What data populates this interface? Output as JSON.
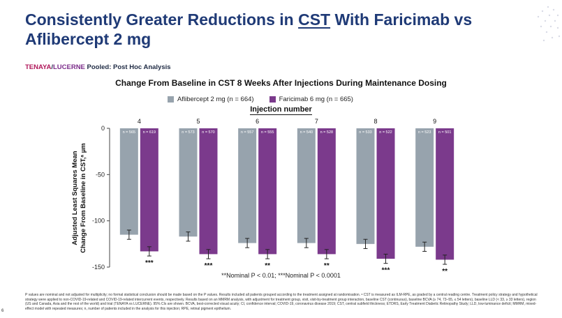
{
  "slide": {
    "title_before": "Consistently Greater Reductions in ",
    "title_underlined": "CST",
    "title_after": " With Faricimab vs Aflibercept 2 mg",
    "subtitle_tenaya": "TENAYA",
    "subtitle_slash": "/",
    "subtitle_lucerne": "LUCERNE",
    "subtitle_rest": " Pooled: Post Hoc Analysis",
    "page_number": "6",
    "significance_note": "**Nominal P < 0.01; ***Nominal P < 0.0001",
    "footnote": "P values are nominal and not adjusted for multiplicity; no formal statistical conclusion should be made based on the P values. Results included all patients grouped according to the treatment assigned at randomisation. ᵃ CST is measured as ILM-RPE, as graded by a central reading centre. Treatment policy strategy and hypothetical strategy were applied to non-COVID-19-related and COVID-19-related intercurrent events, respectively. Results based on an MMRM analysis, with adjustment for treatment group, visit, visit-by-treatment group interaction, baseline CST (continuous), baseline BCVA (≥ 74, 73–55, ≤ 54 letters), baseline LLD (< 33, ≥ 33 letters), region (US and Canada, Asia and the rest of the world) and trial (TENAYA vs LUCERNE). 95% CIs are shown. BCVA, best-corrected visual acuity; CI, confidence interval; COVID-19, coronavirus disease 2019; CST, central subfield thickness; ETDRS, Early Treatment Diabetic Retinopathy Study; LLD, low-luminance deficit; MMRM, mixed-effect model with repeated measures; n, number of patients included in the analysis for this injection; RPE, retinal pigment epithelium."
  },
  "chart_data": {
    "type": "bar",
    "title": "Change From Baseline in CST 8 Weeks After Injections During Maintenance Dosing",
    "xlabel": "Injection number",
    "ylabel_line1": "Adjusted Least Squares Mean",
    "ylabel_line2": "Change From Baseline in CST,ᵃ µm",
    "categories": [
      "4",
      "5",
      "6",
      "7",
      "8",
      "9"
    ],
    "ylim": [
      -150,
      0
    ],
    "yticks": [
      "0",
      "-50",
      "-100",
      "-150"
    ],
    "ytick_values": [
      0,
      -50,
      -100,
      -150
    ],
    "series": [
      {
        "name": "Aflibercept 2 mg (n = 664)",
        "color": "#97a3ad",
        "values": [
          -115,
          -117,
          -124,
          -124,
          -125,
          -128
        ],
        "ci_low": [
          -120,
          -122,
          -129,
          -129,
          -130,
          -133
        ],
        "ci_high": [
          -110,
          -112,
          -119,
          -119,
          -120,
          -123
        ],
        "n_labels": [
          "n = 565",
          "n = 573",
          "n = 557",
          "n = 540",
          "n = 533",
          "n = 523"
        ]
      },
      {
        "name": "Faricimab 6 mg (n = 665)",
        "color": "#7b3a8c",
        "values": [
          -133,
          -136,
          -136,
          -136,
          -141,
          -142
        ],
        "ci_low": [
          -138,
          -141,
          -141,
          -141,
          -146,
          -147
        ],
        "ci_high": [
          -128,
          -131,
          -131,
          -131,
          -136,
          -137
        ],
        "n_labels": [
          "n = 619",
          "n = 570",
          "n = 555",
          "n = 528",
          "n = 522",
          "n = 501"
        ]
      }
    ],
    "significance": [
      "***",
      "***",
      "**",
      "**",
      "***",
      "**"
    ],
    "grid": false,
    "legend_position": "top"
  }
}
